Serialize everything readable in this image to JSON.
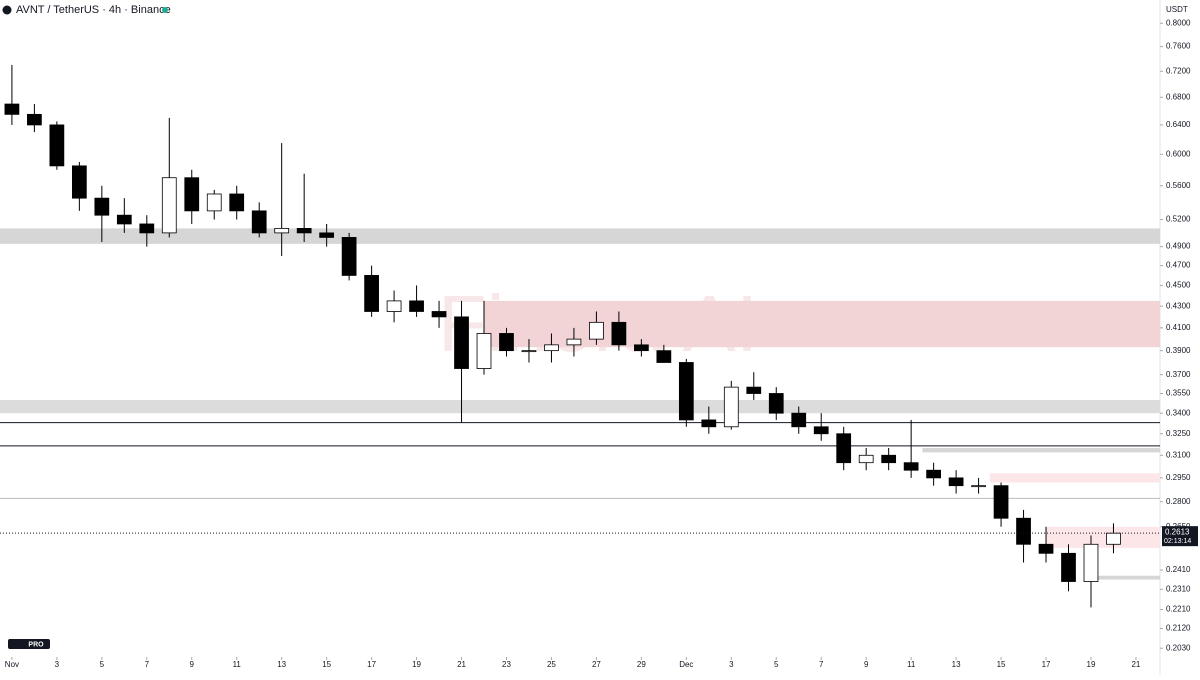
{
  "chart_data": {
    "type": "candlestick",
    "title": "AVNT / TetherUS · 4h · Binance",
    "unit": "USDT",
    "watermark": "Finora AI",
    "logo": "PRO",
    "log_scale": true,
    "xlim": [
      -0.53,
      51.07
    ],
    "ylim": [
      0.2,
      0.84
    ],
    "xticks": [
      {
        "value": 0,
        "label": "Nov"
      },
      {
        "value": 2,
        "label": "3"
      },
      {
        "value": 4,
        "label": "5"
      },
      {
        "value": 6,
        "label": "7"
      },
      {
        "value": 8,
        "label": "9"
      },
      {
        "value": 10,
        "label": "11"
      },
      {
        "value": 12,
        "label": "13"
      },
      {
        "value": 14,
        "label": "15"
      },
      {
        "value": 16,
        "label": "17"
      },
      {
        "value": 18,
        "label": "19"
      },
      {
        "value": 20,
        "label": "21"
      },
      {
        "value": 22,
        "label": "23"
      },
      {
        "value": 24,
        "label": "25"
      },
      {
        "value": 26,
        "label": "27"
      },
      {
        "value": 28,
        "label": "29"
      },
      {
        "value": 30,
        "label": "Dec"
      },
      {
        "value": 32,
        "label": "3"
      },
      {
        "value": 34,
        "label": "5"
      },
      {
        "value": 36,
        "label": "7"
      },
      {
        "value": 38,
        "label": "9"
      },
      {
        "value": 40,
        "label": "11"
      },
      {
        "value": 42,
        "label": "13"
      },
      {
        "value": 44,
        "label": "15"
      },
      {
        "value": 46,
        "label": "17"
      },
      {
        "value": 48,
        "label": "19"
      },
      {
        "value": 50,
        "label": "21"
      }
    ],
    "yticks": [
      {
        "value": 0.8,
        "label": "0.8000"
      },
      {
        "value": 0.76,
        "label": "0.7600"
      },
      {
        "value": 0.72,
        "label": "0.7200"
      },
      {
        "value": 0.68,
        "label": "0.6800"
      },
      {
        "value": 0.64,
        "label": "0.6400"
      },
      {
        "value": 0.6,
        "label": "0.6000"
      },
      {
        "value": 0.56,
        "label": "0.5600"
      },
      {
        "value": 0.52,
        "label": "0.5200"
      },
      {
        "value": 0.49,
        "label": "0.4900"
      },
      {
        "value": 0.47,
        "label": "0.4700"
      },
      {
        "value": 0.45,
        "label": "0.4500"
      },
      {
        "value": 0.43,
        "label": "0.4300"
      },
      {
        "value": 0.41,
        "label": "0.4100"
      },
      {
        "value": 0.39,
        "label": "0.3900"
      },
      {
        "value": 0.37,
        "label": "0.3700"
      },
      {
        "value": 0.355,
        "label": "0.3550"
      },
      {
        "value": 0.34,
        "label": "0.3400"
      },
      {
        "value": 0.325,
        "label": "0.3250"
      },
      {
        "value": 0.31,
        "label": "0.3100"
      },
      {
        "value": 0.295,
        "label": "0.2950"
      },
      {
        "value": 0.28,
        "label": "0.2800"
      },
      {
        "value": 0.265,
        "label": "0.2650"
      },
      {
        "value": 0.241,
        "label": "0.2410"
      },
      {
        "value": 0.231,
        "label": "0.2310"
      },
      {
        "value": 0.221,
        "label": "0.2210"
      },
      {
        "value": 0.212,
        "label": "0.2120"
      },
      {
        "value": 0.203,
        "label": "0.2030"
      }
    ],
    "x": [
      0,
      1,
      2,
      3,
      4,
      5,
      6,
      7,
      8,
      9,
      10,
      11,
      12,
      13,
      14,
      15,
      16,
      17,
      18,
      19,
      20,
      21,
      22,
      23,
      24,
      25,
      26,
      27,
      28,
      29,
      30,
      31,
      32,
      33,
      34,
      35,
      36,
      37,
      38,
      39,
      40,
      41,
      42,
      43,
      44,
      45,
      46,
      47,
      48,
      49
    ],
    "open": [
      0.67,
      0.655,
      0.64,
      0.585,
      0.545,
      0.525,
      0.515,
      0.505,
      0.57,
      0.53,
      0.55,
      0.53,
      0.505,
      0.51,
      0.505,
      0.5,
      0.46,
      0.425,
      0.435,
      0.425,
      0.42,
      0.375,
      0.405,
      0.39,
      0.39,
      0.395,
      0.4,
      0.415,
      0.395,
      0.39,
      0.38,
      0.335,
      0.33,
      0.36,
      0.355,
      0.34,
      0.33,
      0.325,
      0.305,
      0.31,
      0.305,
      0.3,
      0.295,
      0.29,
      0.29,
      0.27,
      0.255,
      0.25,
      0.235,
      0.255
    ],
    "high": [
      0.73,
      0.67,
      0.645,
      0.59,
      0.56,
      0.545,
      0.525,
      0.65,
      0.58,
      0.555,
      0.56,
      0.54,
      0.615,
      0.575,
      0.515,
      0.505,
      0.47,
      0.445,
      0.45,
      0.435,
      0.435,
      0.435,
      0.41,
      0.4,
      0.405,
      0.41,
      0.425,
      0.425,
      0.4,
      0.395,
      0.383,
      0.345,
      0.365,
      0.372,
      0.36,
      0.345,
      0.34,
      0.33,
      0.315,
      0.315,
      0.335,
      0.305,
      0.3,
      0.295,
      0.292,
      0.275,
      0.265,
      0.255,
      0.26,
      0.267
    ],
    "low": [
      0.64,
      0.63,
      0.58,
      0.53,
      0.495,
      0.505,
      0.49,
      0.5,
      0.515,
      0.52,
      0.52,
      0.5,
      0.48,
      0.495,
      0.49,
      0.455,
      0.42,
      0.415,
      0.42,
      0.41,
      0.333,
      0.37,
      0.385,
      0.38,
      0.38,
      0.385,
      0.395,
      0.39,
      0.385,
      0.38,
      0.33,
      0.325,
      0.328,
      0.35,
      0.335,
      0.325,
      0.32,
      0.3,
      0.3,
      0.3,
      0.295,
      0.29,
      0.285,
      0.285,
      0.265,
      0.245,
      0.245,
      0.23,
      0.222,
      0.25
    ],
    "close": [
      0.655,
      0.64,
      0.585,
      0.545,
      0.525,
      0.515,
      0.505,
      0.57,
      0.53,
      0.55,
      0.53,
      0.505,
      0.51,
      0.505,
      0.5,
      0.46,
      0.425,
      0.435,
      0.425,
      0.42,
      0.375,
      0.405,
      0.39,
      0.39,
      0.395,
      0.4,
      0.415,
      0.395,
      0.39,
      0.38,
      0.335,
      0.33,
      0.36,
      0.355,
      0.34,
      0.33,
      0.325,
      0.305,
      0.31,
      0.305,
      0.3,
      0.295,
      0.29,
      0.29,
      0.27,
      0.255,
      0.25,
      0.235,
      0.255,
      0.2613
    ],
    "up_color": "#ffffff",
    "down_color": "#000000",
    "zones": [
      {
        "low": 0.493,
        "high": 0.51,
        "start": -0.53,
        "color": "#d6d6d6"
      },
      {
        "low": 0.34,
        "high": 0.35,
        "start": -0.53,
        "color": "#dcdcdc"
      },
      {
        "low": 0.393,
        "high": 0.435,
        "start": 21,
        "color": "#f2d3d6"
      },
      {
        "low": 0.292,
        "high": 0.298,
        "start": 43.5,
        "color": "#fde6e8"
      },
      {
        "low": 0.253,
        "high": 0.265,
        "start": 46,
        "color": "#fde6e8"
      },
      {
        "low": 0.312,
        "high": 0.315,
        "start": 40.5,
        "color": "#d6d6d6"
      },
      {
        "low": 0.236,
        "high": 0.238,
        "start": 48,
        "color": "#d6d6d6"
      }
    ],
    "levels": [
      0.333,
      0.3165,
      0.282
    ],
    "last_price": 0.2613,
    "countdown": "02:13:14"
  }
}
